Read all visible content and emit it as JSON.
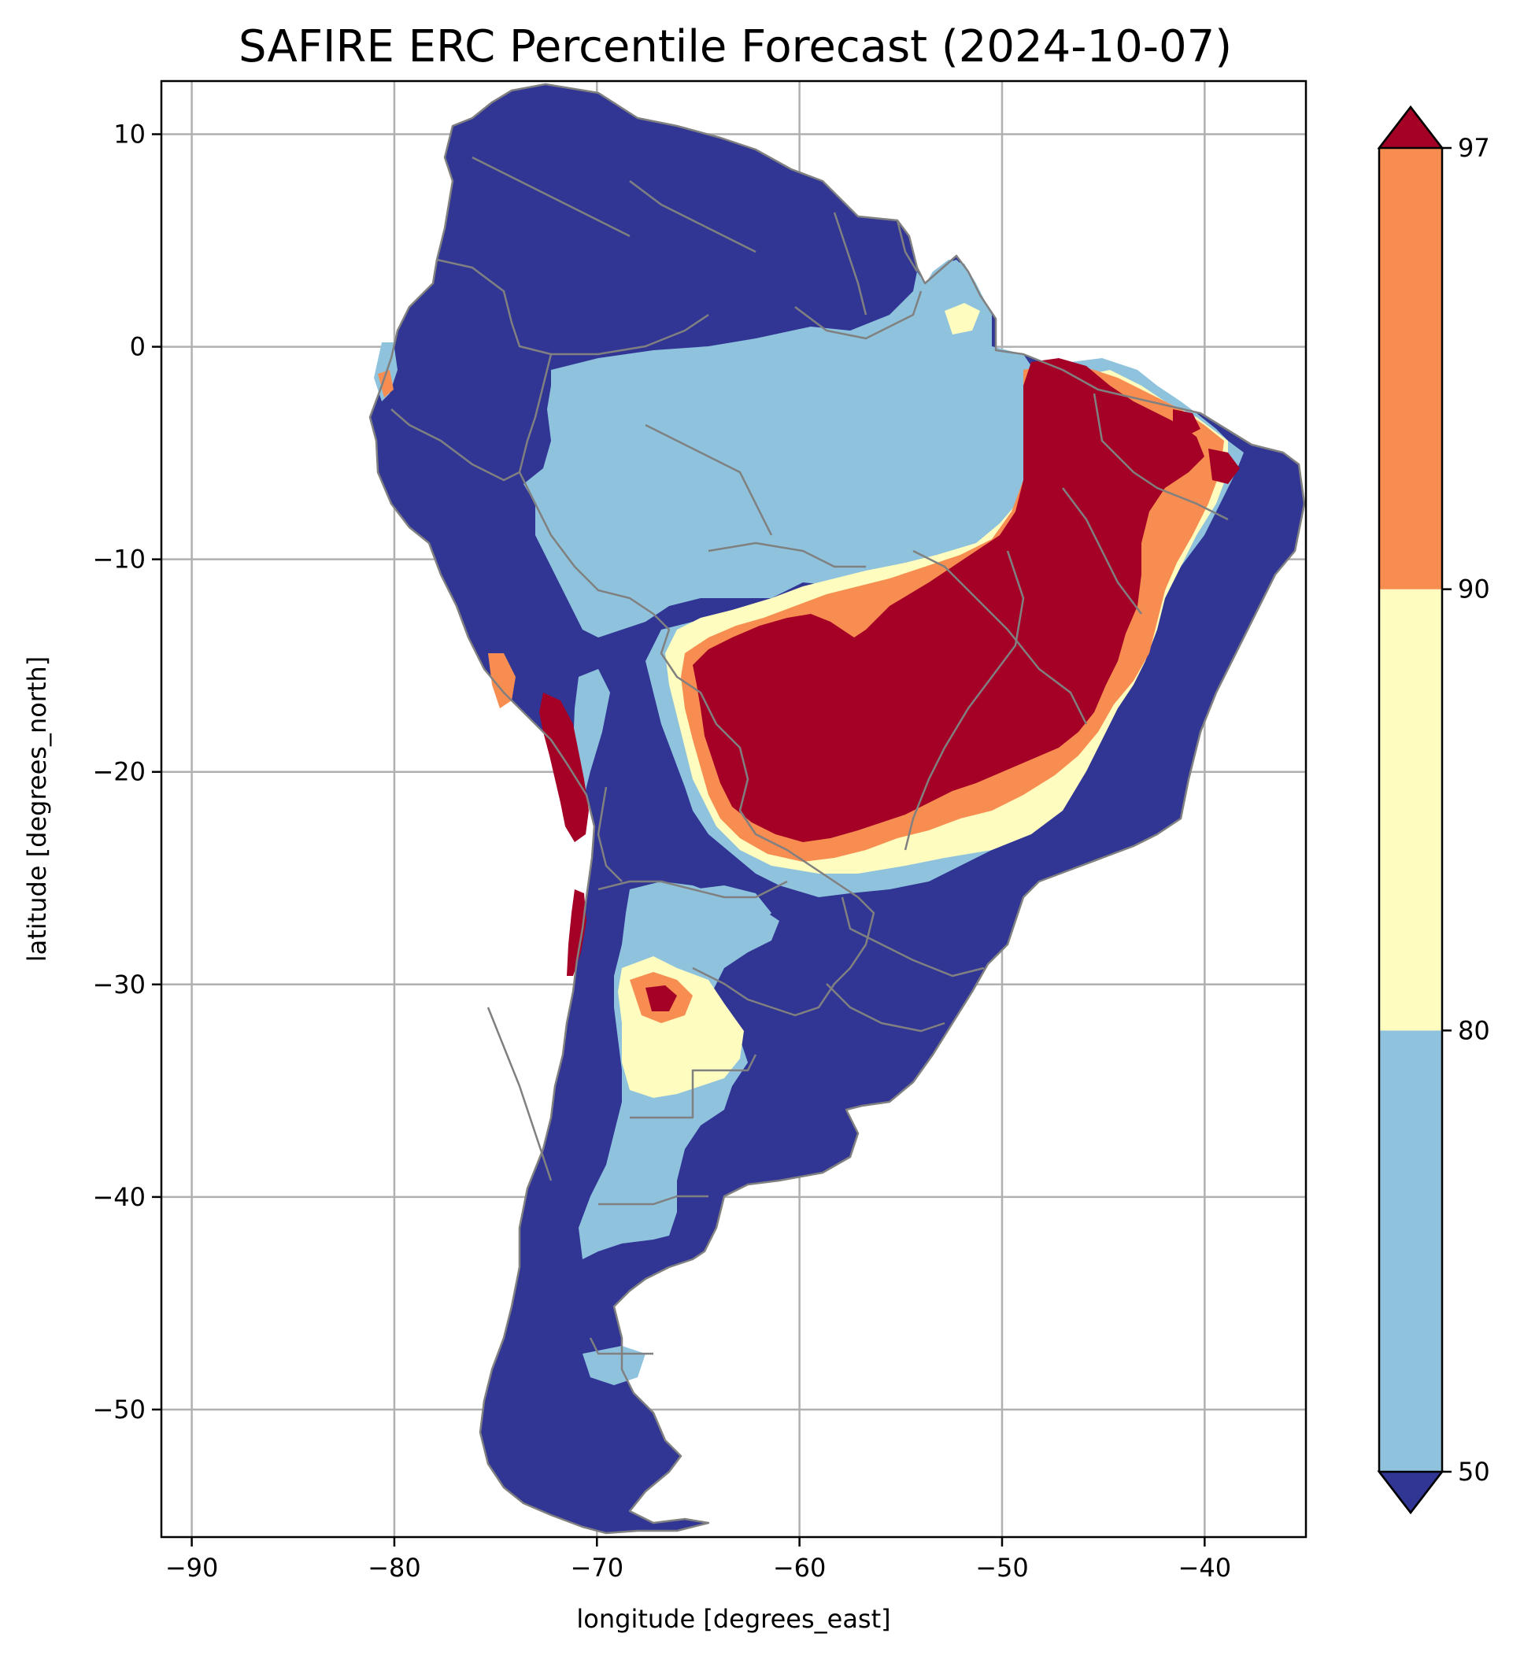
{
  "title": "SAFIRE ERC Percentile Forecast (2024-10-07)",
  "x_axis": {
    "label": "longitude [degrees_east]",
    "range": [
      -91.5,
      -35
    ],
    "ticks": [
      {
        "value": -90,
        "label": "−90"
      },
      {
        "value": -80,
        "label": "−80"
      },
      {
        "value": -70,
        "label": "−70"
      },
      {
        "value": -60,
        "label": "−60"
      },
      {
        "value": -50,
        "label": "−50"
      },
      {
        "value": -40,
        "label": "−40"
      }
    ]
  },
  "y_axis": {
    "label": "latitude [degrees_north]",
    "range": [
      -56,
      12.5
    ],
    "ticks": [
      {
        "value": 10,
        "label": "10"
      },
      {
        "value": 0,
        "label": "0"
      },
      {
        "value": -10,
        "label": "−10"
      },
      {
        "value": -20,
        "label": "−20"
      },
      {
        "value": -30,
        "label": "−30"
      },
      {
        "value": -40,
        "label": "−40"
      },
      {
        "value": -50,
        "label": "−50"
      }
    ]
  },
  "grid": true,
  "colorbar": {
    "levels": [
      {
        "value": 50,
        "label": "50"
      },
      {
        "value": 80,
        "label": "80"
      },
      {
        "value": 90,
        "label": "90"
      },
      {
        "value": 97,
        "label": "97"
      }
    ],
    "colors": {
      "below_50": "#313695",
      "50_80": "#8fc3dd",
      "80_90": "#fefcbe",
      "90_97": "#f88d51",
      "above_97": "#a50026"
    },
    "extend": "both"
  },
  "colors": {
    "border": "#808080",
    "grid": "#b0b0b0"
  }
}
